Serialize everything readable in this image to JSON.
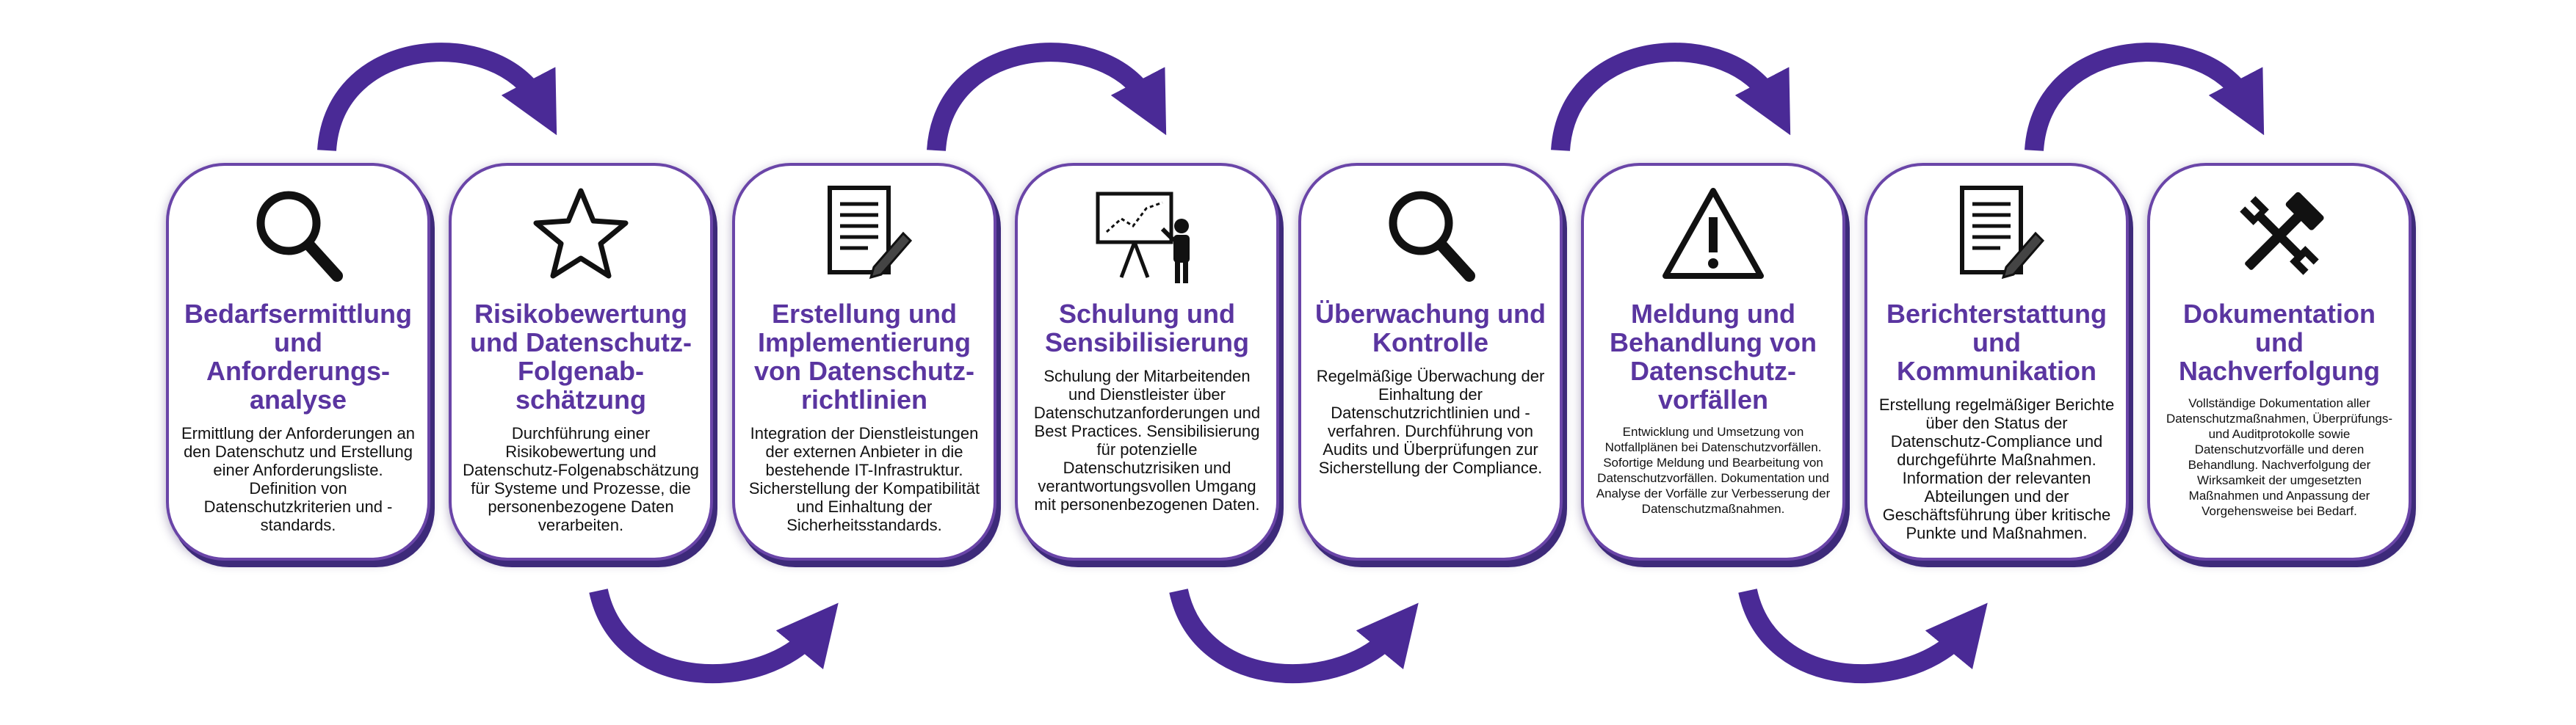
{
  "colors": {
    "accent": "#5a35a0",
    "arrow": "#4a2a96",
    "border": "#6a45a8"
  },
  "steps": [
    {
      "icon": "magnifier-icon",
      "title": "Bedarfsermittlung und Anforderungs-analyse",
      "desc": "Ermittlung der Anforderungen an den Datenschutz und Erstellung einer Anforderungsliste. Definition von Datenschutzkriterien und -standards."
    },
    {
      "icon": "star-icon",
      "title": "Risikobewertung und Datenschutz-Folgenab-schätzung",
      "desc": "Durchführung einer Risikobewertung und Datenschutz-Folgenabschätzung für Systeme und Prozesse, die personenbezogene Daten verarbeiten."
    },
    {
      "icon": "document-pen-icon",
      "title": "Erstellung und Implementierung von Datenschutz-richtlinien",
      "desc": "Integration der Dienstleistungen der externen Anbieter in die bestehende IT-Infrastruktur. Sicherstellung der Kompatibilität und Einhaltung der Sicherheitsstandards."
    },
    {
      "icon": "presentation-icon",
      "title": "Schulung und Sensibilisierung",
      "desc": "Schulung der Mitarbeitenden und Dienstleister über Datenschutzanforderungen und Best Practices. Sensibilisierung für potenzielle Datenschutzrisiken und verantwortungsvollen Umgang mit personenbezogenen Daten."
    },
    {
      "icon": "magnifier-icon",
      "title": "Überwachung und Kontrolle",
      "desc": "Regelmäßige Überwachung der Einhaltung der Datenschutzrichtlinien und -verfahren. Durchführung von Audits und Überprüfungen zur Sicherstellung der Compliance."
    },
    {
      "icon": "warning-icon",
      "title": "Meldung und Behandlung von Datenschutz-vorfällen",
      "desc": "Entwicklung und Umsetzung von Notfallplänen bei Datenschutzvorfällen. Sofortige Meldung und Bearbeitung von Datenschutzvorfällen. Dokumentation und Analyse der Vorfälle zur Verbesserung der Datenschutzmaßnahmen."
    },
    {
      "icon": "document-pen-icon",
      "title": "Berichterstattung und Kommunikation",
      "desc": "Erstellung regelmäßiger Berichte über den Status der Datenschutz-Compliance und durchgeführte Maßnahmen. Information der relevanten Abteilungen und der Geschäftsführung über kritische Punkte und Maßnahmen."
    },
    {
      "icon": "tools-icon",
      "title": "Dokumentation und Nachverfolgung",
      "desc": "Vollständige Dokumentation aller Datenschutzmaßnahmen, Überprüfungs- und Auditprotokolle sowie Datenschutzvorfälle und deren Behandlung. Nachverfolgung der Wirksamkeit der umgesetzten Maßnahmen und Anpassung der Vorgehensweise bei Bedarf."
    }
  ]
}
